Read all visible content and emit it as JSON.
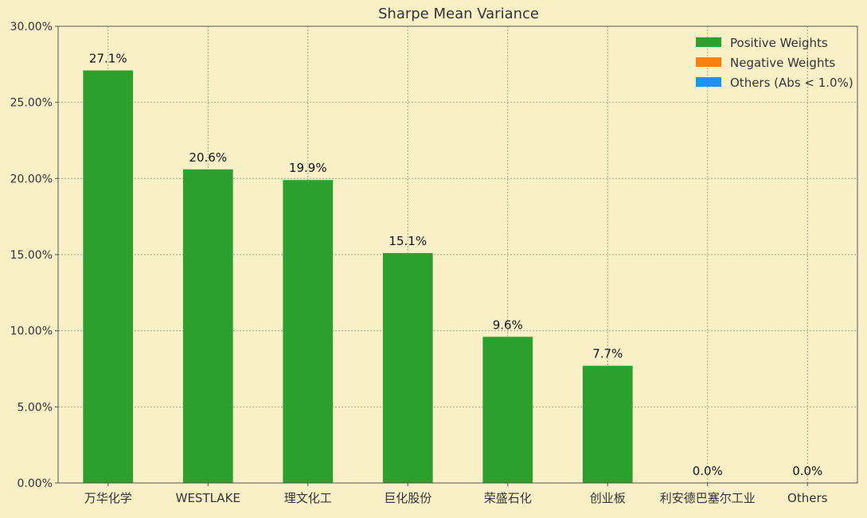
{
  "chart_data": {
    "type": "bar",
    "title": "Sharpe Mean Variance",
    "xlabel": "",
    "ylabel": "",
    "categories": [
      "万华化学",
      "WESTLAKE",
      "理文化工",
      "巨化股份",
      "荣盛石化",
      "创业板",
      "利安德巴塞尔工业",
      "Others"
    ],
    "values": [
      27.1,
      20.6,
      19.9,
      15.1,
      9.6,
      7.7,
      0.0,
      0.0
    ],
    "data_labels": [
      "27.1%",
      "20.6%",
      "19.9%",
      "15.1%",
      "9.6%",
      "7.7%",
      "0.0%",
      "0.0%"
    ],
    "series": [
      {
        "name": "Positive Weights",
        "color": "#2CA02C"
      },
      {
        "name": "Negative Weights",
        "color": "#FF7F0E"
      },
      {
        "name": "Others (Abs < 1.0%)",
        "color": "#1E90FF"
      }
    ],
    "ylim": [
      0,
      30
    ],
    "yticks": [
      0,
      5,
      10,
      15,
      20,
      25,
      30
    ],
    "ytick_labels": [
      "0.00%",
      "5.00%",
      "10.00%",
      "15.00%",
      "20.00%",
      "25.00%",
      "30.00%"
    ],
    "grid": true,
    "legend_position": "top-right"
  },
  "colors": {
    "background": "#FAF0C8",
    "axis": "#555555",
    "grid": "#A0A080",
    "bar": "#2CA02C"
  }
}
